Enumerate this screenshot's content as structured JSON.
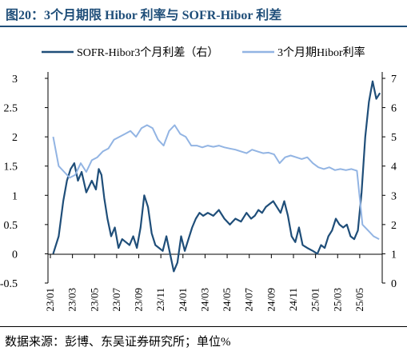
{
  "title": "图20：3个月期限 Hibor 利率与 SOFR-Hibor 利差",
  "source": "数据来源：彭博、东吴证券研究所；单位%",
  "chart_data": {
    "type": "line",
    "legend_position": "top",
    "grid": false,
    "x_tick_labels": [
      "23/01",
      "23/03",
      "23/05",
      "23/07",
      "23/09",
      "23/11",
      "24/01",
      "24/03",
      "24/05",
      "24/07",
      "24/09",
      "24/11",
      "25/01",
      "25/03",
      "25/05"
    ],
    "y_left": {
      "ticks": [
        "-0.5",
        "0",
        "0.5",
        "1",
        "1.5",
        "2",
        "2.5",
        "3"
      ],
      "range": [
        -0.5,
        3
      ]
    },
    "y_right": {
      "ticks": [
        "0",
        "1",
        "2",
        "3",
        "4",
        "5",
        "6",
        "7"
      ],
      "range": [
        0,
        7
      ]
    },
    "series": [
      {
        "name": "SOFR-Hibor3个月利差（右）",
        "axis": "right",
        "color": "#1f4e79",
        "points": [
          [
            "23/01",
            1.0
          ],
          [
            "23/01",
            1.6
          ],
          [
            "23/02",
            2.8
          ],
          [
            "23/02",
            3.5
          ],
          [
            "23/02",
            3.9
          ],
          [
            "23/03",
            4.1
          ],
          [
            "23/03",
            3.5
          ],
          [
            "23/03",
            3.8
          ],
          [
            "23/04",
            3.1
          ],
          [
            "23/04",
            3.5
          ],
          [
            "23/05",
            3.2
          ],
          [
            "23/05",
            3.9
          ],
          [
            "23/05",
            3.7
          ],
          [
            "23/05",
            2.9
          ],
          [
            "23/06",
            2.2
          ],
          [
            "23/06",
            1.6
          ],
          [
            "23/06",
            1.9
          ],
          [
            "23/07",
            1.2
          ],
          [
            "23/07",
            1.5
          ],
          [
            "23/07",
            1.4
          ],
          [
            "23/08",
            1.3
          ],
          [
            "23/08",
            1.6
          ],
          [
            "23/08",
            1.2
          ],
          [
            "23/09",
            1.9
          ],
          [
            "23/09",
            3.0
          ],
          [
            "23/09",
            2.6
          ],
          [
            "23/10",
            1.7
          ],
          [
            "23/10",
            1.3
          ],
          [
            "23/10",
            1.2
          ],
          [
            "23/11",
            1.1
          ],
          [
            "23/11",
            1.6
          ],
          [
            "23/11",
            1.0
          ],
          [
            "23/12",
            0.4
          ],
          [
            "23/12",
            0.7
          ],
          [
            "23/12",
            1.6
          ],
          [
            "24/01",
            1.1
          ],
          [
            "24/01",
            1.5
          ],
          [
            "24/01",
            1.9
          ],
          [
            "24/02",
            2.2
          ],
          [
            "24/02",
            2.4
          ],
          [
            "24/02",
            2.3
          ],
          [
            "24/03",
            2.4
          ],
          [
            "24/03",
            2.3
          ],
          [
            "24/04",
            2.5
          ],
          [
            "24/04",
            2.2
          ],
          [
            "24/05",
            2.0
          ],
          [
            "24/05",
            2.2
          ],
          [
            "24/06",
            2.1
          ],
          [
            "24/06",
            2.4
          ],
          [
            "24/07",
            2.2
          ],
          [
            "24/07",
            2.3
          ],
          [
            "24/07",
            2.5
          ],
          [
            "24/08",
            2.4
          ],
          [
            "24/08",
            2.6
          ],
          [
            "24/08",
            2.7
          ],
          [
            "24/09",
            2.8
          ],
          [
            "24/09",
            2.6
          ],
          [
            "24/09",
            2.4
          ],
          [
            "24/10",
            2.8
          ],
          [
            "24/10",
            2.3
          ],
          [
            "24/10",
            1.6
          ],
          [
            "24/11",
            1.4
          ],
          [
            "24/11",
            1.9
          ],
          [
            "24/11",
            1.3
          ],
          [
            "24/12",
            1.2
          ],
          [
            "24/12",
            1.1
          ],
          [
            "25/01",
            1.0
          ],
          [
            "25/01",
            1.3
          ],
          [
            "25/01",
            1.2
          ],
          [
            "25/02",
            1.6
          ],
          [
            "25/02",
            1.8
          ],
          [
            "25/02",
            2.2
          ],
          [
            "25/03",
            2.0
          ],
          [
            "25/03",
            1.9
          ],
          [
            "25/03",
            2.0
          ],
          [
            "25/04",
            1.6
          ],
          [
            "25/04",
            1.5
          ],
          [
            "25/04",
            1.8
          ],
          [
            "25/05",
            3.1
          ],
          [
            "25/05",
            5.0
          ],
          [
            "25/05",
            6.2
          ],
          [
            "25/06",
            6.9
          ],
          [
            "25/06",
            6.3
          ],
          [
            "25/06",
            6.5
          ]
        ]
      },
      {
        "name": "3个月期Hibor利率",
        "axis": "left",
        "color": "#92b4e3",
        "points": [
          [
            "23/01",
            2.0
          ],
          [
            "23/01",
            1.5
          ],
          [
            "23/02",
            1.4
          ],
          [
            "23/02",
            1.3
          ],
          [
            "23/03",
            1.35
          ],
          [
            "23/03",
            1.55
          ],
          [
            "23/04",
            1.4
          ],
          [
            "23/04",
            1.6
          ],
          [
            "23/05",
            1.65
          ],
          [
            "23/05",
            1.75
          ],
          [
            "23/06",
            1.8
          ],
          [
            "23/06",
            1.95
          ],
          [
            "23/07",
            2.0
          ],
          [
            "23/07",
            2.05
          ],
          [
            "23/08",
            2.1
          ],
          [
            "23/08",
            2.0
          ],
          [
            "23/09",
            2.15
          ],
          [
            "23/09",
            2.2
          ],
          [
            "23/10",
            2.15
          ],
          [
            "23/10",
            1.95
          ],
          [
            "23/11",
            1.85
          ],
          [
            "23/11",
            2.1
          ],
          [
            "23/12",
            2.2
          ],
          [
            "23/12",
            2.05
          ],
          [
            "24/01",
            2.0
          ],
          [
            "24/01",
            1.85
          ],
          [
            "24/02",
            1.85
          ],
          [
            "24/02",
            1.82
          ],
          [
            "24/03",
            1.85
          ],
          [
            "24/03",
            1.83
          ],
          [
            "24/04",
            1.85
          ],
          [
            "24/04",
            1.82
          ],
          [
            "24/05",
            1.8
          ],
          [
            "24/05",
            1.78
          ],
          [
            "24/06",
            1.75
          ],
          [
            "24/06",
            1.72
          ],
          [
            "24/07",
            1.78
          ],
          [
            "24/07",
            1.75
          ],
          [
            "24/08",
            1.72
          ],
          [
            "24/08",
            1.73
          ],
          [
            "24/09",
            1.7
          ],
          [
            "24/09",
            1.55
          ],
          [
            "24/10",
            1.65
          ],
          [
            "24/10",
            1.68
          ],
          [
            "24/11",
            1.65
          ],
          [
            "24/11",
            1.62
          ],
          [
            "24/12",
            1.65
          ],
          [
            "24/12",
            1.55
          ],
          [
            "25/01",
            1.48
          ],
          [
            "25/01",
            1.45
          ],
          [
            "25/02",
            1.48
          ],
          [
            "25/02",
            1.43
          ],
          [
            "25/03",
            1.45
          ],
          [
            "25/03",
            1.43
          ],
          [
            "25/04",
            1.45
          ],
          [
            "25/04",
            1.42
          ],
          [
            "25/05",
            0.5
          ],
          [
            "25/05",
            0.4
          ],
          [
            "25/06",
            0.3
          ],
          [
            "25/06",
            0.25
          ]
        ]
      }
    ]
  }
}
